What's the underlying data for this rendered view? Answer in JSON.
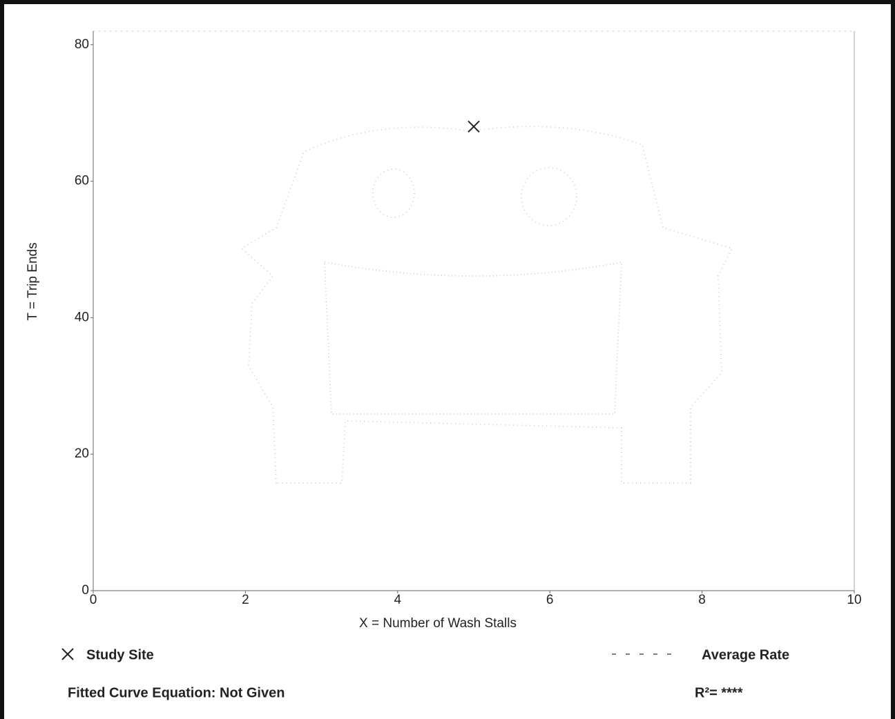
{
  "chart_data": {
    "type": "scatter",
    "x_label": "X = Number of Wash Stalls",
    "y_label": "T = Trip Ends",
    "series": [
      {
        "name": "Study Site",
        "color": "#222222",
        "x": [
          5
        ],
        "values": [
          68
        ]
      }
    ],
    "average_rate_label": "Average Rate",
    "fitted_curve_equation": "Fitted Curve Equation: Not Given",
    "r_squared": "R²= ****",
    "xlim": [
      0,
      10
    ],
    "xticks": [
      0,
      2,
      4,
      6,
      8,
      10
    ],
    "ylim": [
      0,
      82
    ],
    "yticks": [
      0,
      20,
      40,
      60,
      80
    ]
  }
}
